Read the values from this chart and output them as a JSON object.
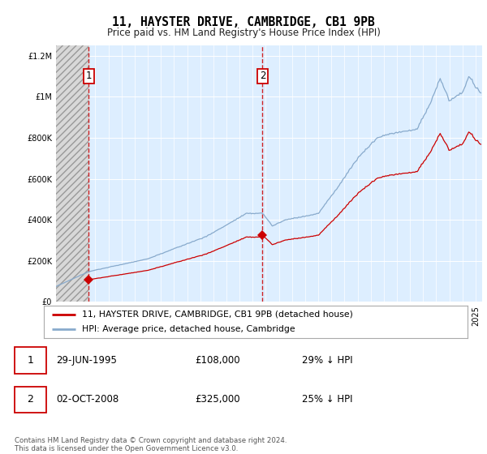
{
  "title": "11, HAYSTER DRIVE, CAMBRIDGE, CB1 9PB",
  "subtitle": "Price paid vs. HM Land Registry's House Price Index (HPI)",
  "legend_property": "11, HAYSTER DRIVE, CAMBRIDGE, CB1 9PB (detached house)",
  "legend_hpi": "HPI: Average price, detached house, Cambridge",
  "annotation1_date": "29-JUN-1995",
  "annotation1_price": "£108,000",
  "annotation1_hpi": "29% ↓ HPI",
  "annotation1_year": 1995.5,
  "annotation1_value": 108000,
  "annotation2_date": "02-OCT-2008",
  "annotation2_price": "£325,000",
  "annotation2_hpi": "25% ↓ HPI",
  "annotation2_year": 2008.75,
  "annotation2_value": 325000,
  "copyright_text": "Contains HM Land Registry data © Crown copyright and database right 2024.\nThis data is licensed under the Open Government Licence v3.0.",
  "xmin": 1993.0,
  "xmax": 2025.5,
  "ymin": 0,
  "ymax": 1250000,
  "property_color": "#cc0000",
  "hpi_color": "#88aacc",
  "vline_color": "#cc0000",
  "bg_color": "#ddeeff",
  "hatch_bg": "#d8d8d8"
}
